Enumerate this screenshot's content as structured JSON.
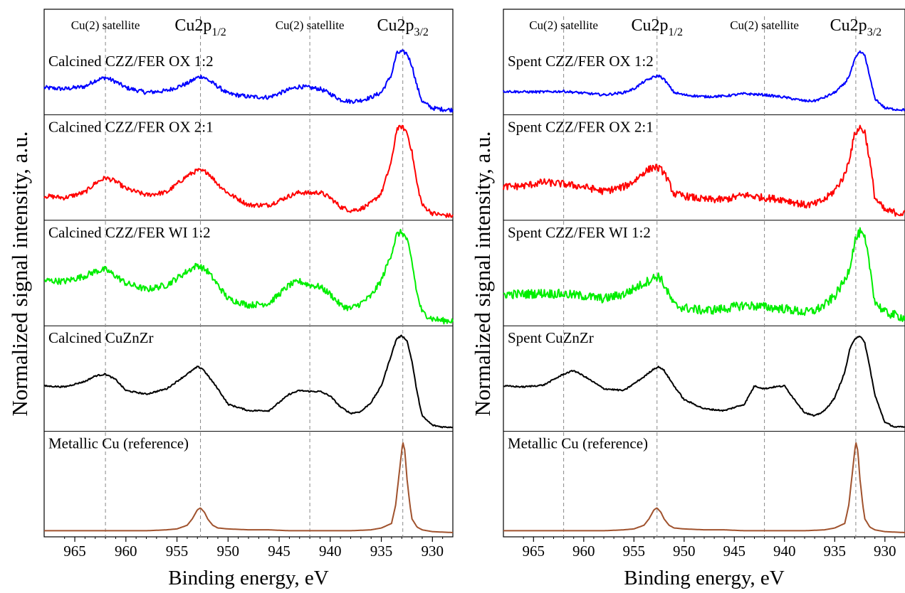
{
  "figure": {
    "ylabel": "Normalized signal intensity, a.u.",
    "xlabel": "Binding energy, eV"
  },
  "peak_labels": {
    "sat1": "Cu(2) satellite",
    "p12_main": "Cu2p",
    "p12_sub": "1/2",
    "sat2": "Cu(2) satellite",
    "p32_main": "Cu2p",
    "p32_sub": "3/2"
  },
  "chart_data": [
    {
      "type": "line",
      "panel": "left",
      "xlabel": "Binding energy, eV",
      "ylabel": "Normalized signal intensity, a.u.",
      "xlim": [
        968,
        928
      ],
      "x_reversed": true,
      "xticks": [
        965,
        960,
        955,
        950,
        945,
        940,
        935,
        930
      ],
      "reference_lines_eV": [
        962.0,
        952.7,
        942.0,
        932.9
      ],
      "series": [
        {
          "name": "Calcined CZZ/FER OX 1:2",
          "color": "#0000ff",
          "noise": 0.035,
          "x": [
            968,
            966,
            964,
            963,
            962,
            961,
            960,
            958,
            956,
            954,
            953,
            952.5,
            951,
            950,
            948,
            946,
            944,
            943,
            942,
            941,
            940,
            939,
            938,
            937,
            936,
            935,
            934,
            933.5,
            933,
            932.5,
            932,
            931.5,
            931,
            930,
            929,
            928
          ],
          "y": [
            0.38,
            0.36,
            0.4,
            0.5,
            0.55,
            0.48,
            0.38,
            0.3,
            0.33,
            0.45,
            0.55,
            0.57,
            0.4,
            0.28,
            0.23,
            0.22,
            0.35,
            0.4,
            0.38,
            0.36,
            0.28,
            0.18,
            0.15,
            0.17,
            0.22,
            0.3,
            0.6,
            0.95,
            0.98,
            0.95,
            0.75,
            0.4,
            0.15,
            0.04,
            0.02,
            0.01
          ]
        },
        {
          "name": "Calcined CZZ/FER OX 2:1",
          "color": "#ff0000",
          "noise": 0.025,
          "x": [
            968,
            966,
            964,
            963,
            962,
            961,
            960,
            958,
            956,
            954,
            953,
            952,
            951,
            950,
            948,
            946,
            944,
            943,
            942,
            941,
            940,
            939,
            938,
            937,
            936,
            935,
            934,
            933.5,
            933,
            932.5,
            932,
            931.5,
            931,
            930,
            929,
            928
          ],
          "y": [
            0.22,
            0.2,
            0.26,
            0.36,
            0.42,
            0.38,
            0.3,
            0.23,
            0.26,
            0.44,
            0.5,
            0.48,
            0.35,
            0.25,
            0.12,
            0.12,
            0.22,
            0.26,
            0.25,
            0.26,
            0.2,
            0.1,
            0.06,
            0.08,
            0.14,
            0.25,
            0.6,
            0.95,
            0.98,
            0.92,
            0.7,
            0.35,
            0.12,
            0.03,
            0.01,
            0.0
          ]
        },
        {
          "name": "Calcined CZZ/FER WI 1:2",
          "color": "#00ee00",
          "noise": 0.035,
          "x": [
            968,
            966,
            964,
            963,
            962,
            961,
            960,
            958,
            956,
            954,
            953,
            952,
            951,
            950,
            948,
            946,
            944,
            943,
            942,
            941,
            940,
            939,
            938,
            937,
            936,
            935,
            934,
            933.5,
            933,
            932.5,
            932,
            931.5,
            931,
            930,
            929,
            928
          ],
          "y": [
            0.45,
            0.44,
            0.5,
            0.55,
            0.57,
            0.5,
            0.42,
            0.35,
            0.4,
            0.55,
            0.62,
            0.55,
            0.4,
            0.25,
            0.18,
            0.2,
            0.4,
            0.44,
            0.4,
            0.38,
            0.3,
            0.18,
            0.14,
            0.2,
            0.28,
            0.45,
            0.75,
            0.95,
            0.98,
            0.9,
            0.65,
            0.3,
            0.1,
            0.03,
            0.01,
            0.01
          ]
        },
        {
          "name": "Calcined CuZnZr",
          "color": "#000000",
          "noise": 0.008,
          "x": [
            968,
            966,
            964,
            963,
            962,
            961,
            960,
            958,
            956,
            954,
            953,
            952.5,
            951,
            950,
            948,
            946,
            944,
            943,
            942,
            941,
            940,
            939,
            938,
            937,
            936,
            935,
            934,
            933.5,
            933,
            932.5,
            932,
            931.5,
            931,
            930,
            929,
            928
          ],
          "y": [
            0.45,
            0.44,
            0.5,
            0.56,
            0.58,
            0.52,
            0.4,
            0.36,
            0.42,
            0.58,
            0.66,
            0.64,
            0.42,
            0.25,
            0.18,
            0.18,
            0.36,
            0.4,
            0.39,
            0.39,
            0.34,
            0.22,
            0.15,
            0.17,
            0.27,
            0.45,
            0.8,
            0.97,
            1.0,
            0.95,
            0.72,
            0.38,
            0.12,
            0.02,
            0.0,
            0.0
          ]
        },
        {
          "name": "Metallic Cu (reference)",
          "color": "#a0522d",
          "noise": 0.0,
          "x": [
            968,
            966,
            964,
            962,
            960,
            958,
            956,
            955,
            954,
            953.5,
            953,
            952.7,
            952.3,
            952,
            951.5,
            951,
            950,
            948,
            946,
            944,
            942,
            940,
            938,
            936,
            935,
            934,
            933.6,
            933.3,
            933,
            932.9,
            932.7,
            932.5,
            932.2,
            932,
            931.5,
            931,
            930,
            928
          ],
          "y": [
            0.02,
            0.02,
            0.02,
            0.02,
            0.02,
            0.02,
            0.03,
            0.04,
            0.08,
            0.15,
            0.25,
            0.27,
            0.22,
            0.15,
            0.08,
            0.05,
            0.04,
            0.03,
            0.03,
            0.02,
            0.02,
            0.02,
            0.02,
            0.03,
            0.05,
            0.1,
            0.3,
            0.6,
            0.9,
            0.99,
            0.9,
            0.6,
            0.3,
            0.15,
            0.06,
            0.03,
            0.01,
            0.0
          ]
        }
      ]
    },
    {
      "type": "line",
      "panel": "right",
      "xlabel": "Binding energy, eV",
      "ylabel": "Normalized signal intensity, a.u.",
      "xlim": [
        968,
        928
      ],
      "x_reversed": true,
      "xticks": [
        965,
        960,
        955,
        950,
        945,
        940,
        935,
        930
      ],
      "reference_lines_eV": [
        962.0,
        952.7,
        942.0,
        932.9
      ],
      "series": [
        {
          "name": "Spent CZZ/FER OX 1:2",
          "color": "#0000ff",
          "noise": 0.02,
          "x": [
            968,
            966,
            964,
            962,
            960,
            958,
            956,
            955,
            954,
            953,
            952.5,
            952,
            951,
            950,
            948,
            946,
            944,
            942,
            940,
            938,
            937,
            936,
            935,
            934,
            933.5,
            933,
            932.5,
            932,
            931.5,
            931,
            930,
            929,
            928
          ],
          "y": [
            0.32,
            0.31,
            0.31,
            0.32,
            0.29,
            0.26,
            0.3,
            0.36,
            0.48,
            0.56,
            0.58,
            0.52,
            0.3,
            0.26,
            0.23,
            0.24,
            0.28,
            0.26,
            0.22,
            0.16,
            0.16,
            0.22,
            0.3,
            0.45,
            0.6,
            0.85,
            0.98,
            0.92,
            0.55,
            0.2,
            0.04,
            0.02,
            0.01
          ]
        },
        {
          "name": "Spent CZZ/FER OX 2:1",
          "color": "#ff0000",
          "noise": 0.04,
          "x": [
            968,
            966,
            964,
            962,
            960,
            958,
            956,
            955,
            954,
            953,
            952.5,
            952,
            951,
            950,
            948,
            946,
            944,
            942,
            940,
            938,
            937,
            936,
            935,
            934,
            933.5,
            933,
            932.5,
            932,
            931.5,
            931,
            930,
            929,
            928
          ],
          "y": [
            0.32,
            0.33,
            0.37,
            0.35,
            0.32,
            0.27,
            0.32,
            0.38,
            0.48,
            0.54,
            0.52,
            0.48,
            0.24,
            0.22,
            0.18,
            0.18,
            0.23,
            0.2,
            0.18,
            0.12,
            0.13,
            0.18,
            0.28,
            0.45,
            0.65,
            0.9,
            0.97,
            0.92,
            0.6,
            0.2,
            0.06,
            0.04,
            0.02
          ]
        },
        {
          "name": "Spent CZZ/FER WI 1:2",
          "color": "#00ee00",
          "noise": 0.05,
          "x": [
            968,
            966,
            964,
            962,
            960,
            958,
            956,
            955,
            954,
            953,
            952.5,
            952,
            951,
            950,
            948,
            946,
            944,
            942,
            940,
            938,
            937,
            936,
            935,
            934,
            933.5,
            933,
            932.5,
            932,
            931.5,
            931,
            930,
            929,
            928
          ],
          "y": [
            0.3,
            0.3,
            0.31,
            0.3,
            0.28,
            0.25,
            0.3,
            0.36,
            0.42,
            0.48,
            0.5,
            0.4,
            0.18,
            0.15,
            0.12,
            0.14,
            0.18,
            0.16,
            0.14,
            0.1,
            0.12,
            0.18,
            0.28,
            0.45,
            0.6,
            0.88,
            0.98,
            0.9,
            0.6,
            0.22,
            0.1,
            0.07,
            0.04
          ]
        },
        {
          "name": "Spent CuZnZr",
          "color": "#000000",
          "noise": 0.008,
          "x": [
            968,
            966,
            964,
            962,
            961,
            960,
            958,
            956,
            954,
            953,
            952.5,
            952,
            951,
            950,
            948,
            946,
            944,
            943,
            942,
            941,
            940,
            939,
            938,
            937,
            936,
            935,
            934,
            933.5,
            933,
            932.5,
            932,
            931.5,
            931,
            930,
            929,
            928
          ],
          "y": [
            0.45,
            0.44,
            0.46,
            0.58,
            0.62,
            0.56,
            0.42,
            0.4,
            0.55,
            0.64,
            0.66,
            0.62,
            0.45,
            0.3,
            0.2,
            0.18,
            0.25,
            0.45,
            0.42,
            0.44,
            0.45,
            0.3,
            0.16,
            0.12,
            0.18,
            0.32,
            0.6,
            0.85,
            0.97,
            1.0,
            0.92,
            0.65,
            0.35,
            0.05,
            0.0,
            0.0
          ]
        },
        {
          "name": "Metallic Cu (reference)",
          "color": "#a0522d",
          "noise": 0.0,
          "x": [
            968,
            966,
            964,
            962,
            960,
            958,
            956,
            955,
            954,
            953.5,
            953,
            952.7,
            952.3,
            952,
            951.5,
            951,
            950,
            948,
            946,
            944,
            942,
            940,
            938,
            936,
            935,
            934,
            933.6,
            933.3,
            933,
            932.9,
            932.7,
            932.5,
            932.2,
            932,
            931.5,
            931,
            930,
            928
          ],
          "y": [
            0.02,
            0.02,
            0.02,
            0.02,
            0.02,
            0.02,
            0.03,
            0.04,
            0.08,
            0.15,
            0.25,
            0.27,
            0.22,
            0.15,
            0.08,
            0.05,
            0.04,
            0.03,
            0.03,
            0.02,
            0.02,
            0.02,
            0.02,
            0.03,
            0.05,
            0.1,
            0.3,
            0.6,
            0.9,
            0.99,
            0.9,
            0.6,
            0.3,
            0.15,
            0.06,
            0.03,
            0.01,
            0.0
          ]
        }
      ]
    }
  ]
}
